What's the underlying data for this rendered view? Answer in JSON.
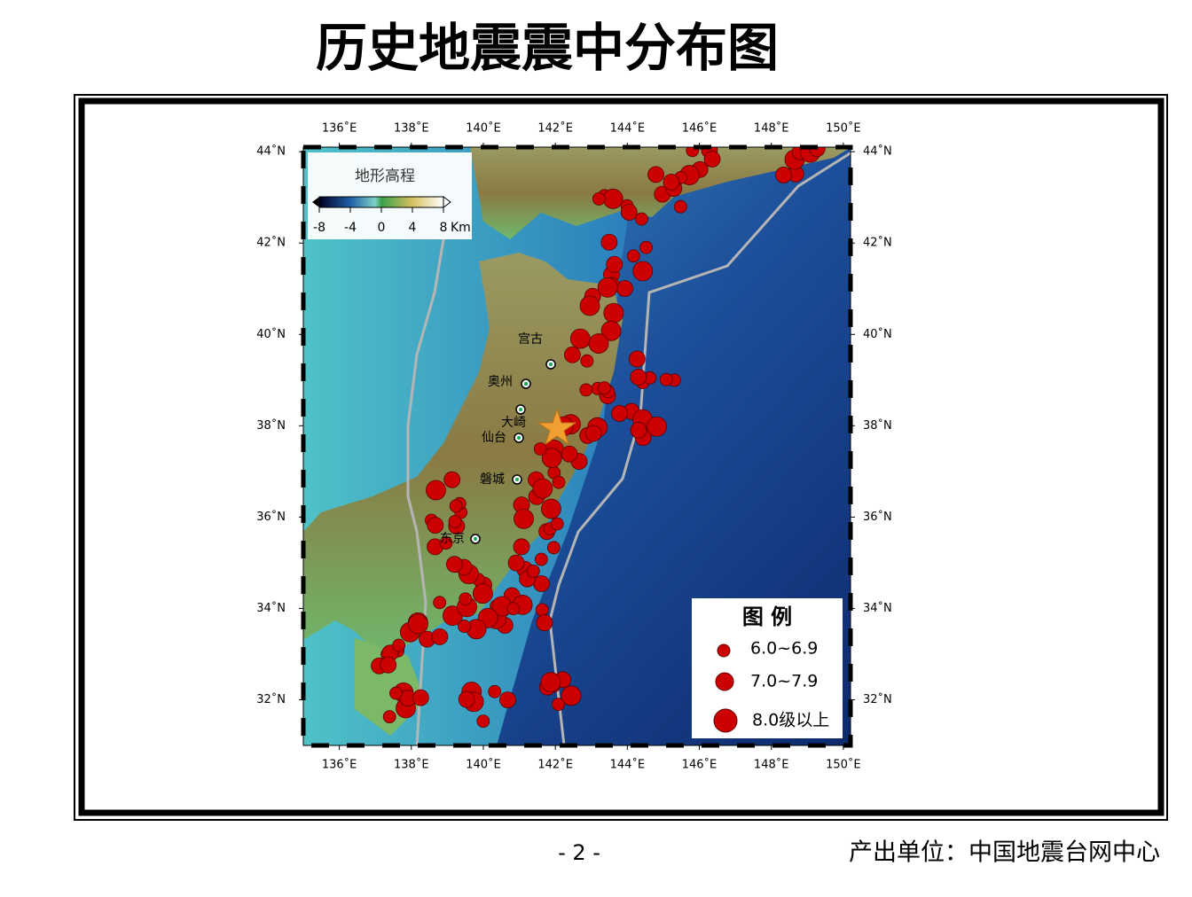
{
  "title": "历史地震震中分布图",
  "map": {
    "xlim": [
      135,
      150.2
    ],
    "ylim": [
      31,
      44.1
    ],
    "lon_ticks": [
      {
        "value": 136,
        "label": "136˚E"
      },
      {
        "value": 138,
        "label": "138˚E"
      },
      {
        "value": 140,
        "label": "140˚E"
      },
      {
        "value": 142,
        "label": "142˚E"
      },
      {
        "value": 144,
        "label": "144˚E"
      },
      {
        "value": 146,
        "label": "146˚E"
      },
      {
        "value": 148,
        "label": "148˚E"
      },
      {
        "value": 150,
        "label": "150˚E"
      }
    ],
    "lat_ticks": [
      {
        "value": 44,
        "label": "44˚N"
      },
      {
        "value": 42,
        "label": "42˚N"
      },
      {
        "value": 40,
        "label": "40˚N"
      },
      {
        "value": 38,
        "label": "38˚N"
      },
      {
        "value": 36,
        "label": "36˚N"
      },
      {
        "value": 34,
        "label": "34˚N"
      },
      {
        "value": 32,
        "label": "32˚N"
      }
    ],
    "cities": [
      "宫古",
      "奥州",
      "大崎",
      "仙台",
      "磐城",
      "东京"
    ],
    "colorbar": {
      "title": "地形高程",
      "lim": [
        -8,
        8
      ],
      "ticks": [
        -8,
        -4,
        0,
        4,
        8
      ],
      "unit": "Km"
    },
    "legend": {
      "title": "图 例",
      "items": [
        "6.0~6.9",
        "7.0~7.9",
        "8.0级以上"
      ]
    }
  },
  "footer": {
    "page": "- 2 -",
    "producer": "产出单位：中国地震台网中心"
  }
}
